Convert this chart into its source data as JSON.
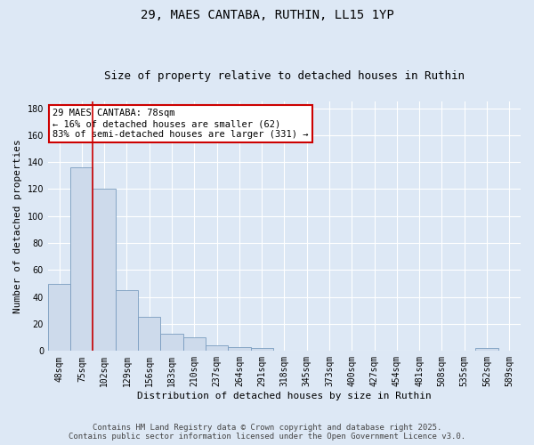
{
  "title1": "29, MAES CANTABA, RUTHIN, LL15 1YP",
  "title2": "Size of property relative to detached houses in Ruthin",
  "xlabel": "Distribution of detached houses by size in Ruthin",
  "ylabel": "Number of detached properties",
  "categories": [
    "48sqm",
    "75sqm",
    "102sqm",
    "129sqm",
    "156sqm",
    "183sqm",
    "210sqm",
    "237sqm",
    "264sqm",
    "291sqm",
    "318sqm",
    "345sqm",
    "373sqm",
    "400sqm",
    "427sqm",
    "454sqm",
    "481sqm",
    "508sqm",
    "535sqm",
    "562sqm",
    "589sqm"
  ],
  "values": [
    50,
    136,
    120,
    45,
    25,
    13,
    10,
    4,
    3,
    2,
    0,
    0,
    0,
    0,
    0,
    0,
    0,
    0,
    0,
    2,
    0
  ],
  "bar_color": "#cddaeb",
  "bar_edge_color": "#7a9cbf",
  "background_color": "#dde8f5",
  "grid_color": "#ffffff",
  "vline_color": "#cc0000",
  "vline_pos": 1.5,
  "annotation_text": "29 MAES CANTABA: 78sqm\n← 16% of detached houses are smaller (62)\n83% of semi-detached houses are larger (331) →",
  "annotation_box_facecolor": "#ffffff",
  "annotation_box_edgecolor": "#cc0000",
  "ylim": [
    0,
    185
  ],
  "yticks": [
    0,
    20,
    40,
    60,
    80,
    100,
    120,
    140,
    160,
    180
  ],
  "footer_line1": "Contains HM Land Registry data © Crown copyright and database right 2025.",
  "footer_line2": "Contains public sector information licensed under the Open Government Licence v3.0.",
  "title1_fontsize": 10,
  "title2_fontsize": 9,
  "xlabel_fontsize": 8,
  "ylabel_fontsize": 8,
  "tick_fontsize": 7,
  "annotation_fontsize": 7.5,
  "footer_fontsize": 6.5
}
